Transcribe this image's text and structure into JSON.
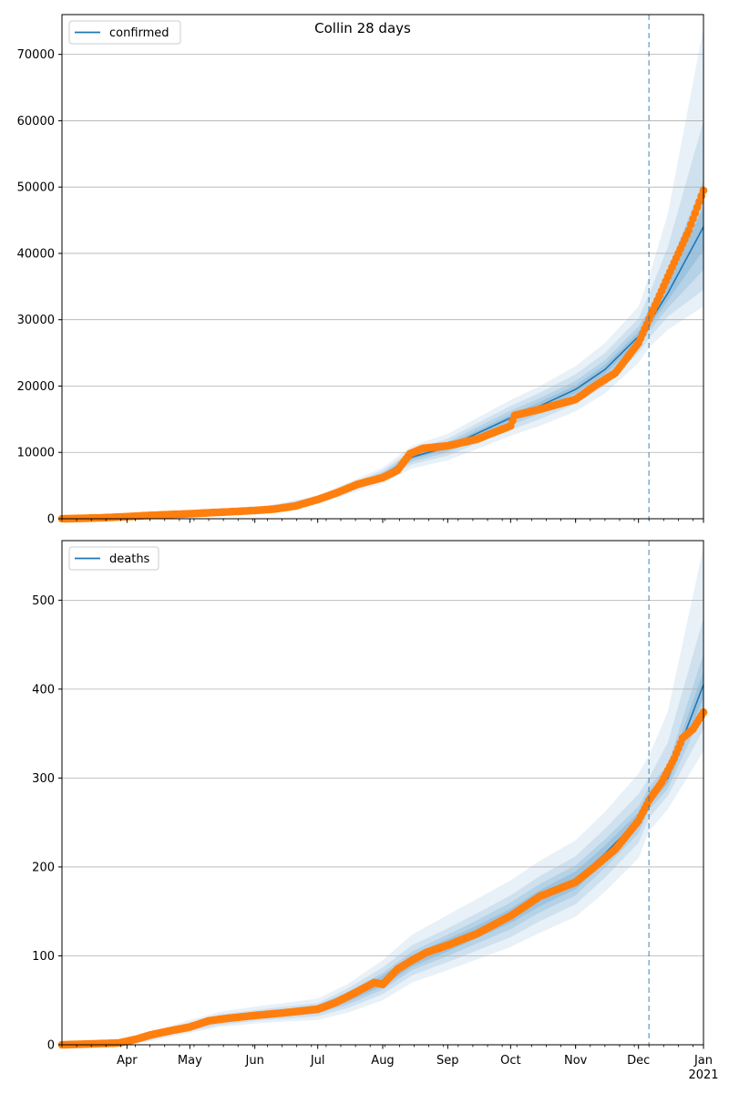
{
  "figure": {
    "title": "Collin 28 days"
  },
  "chart_data": [
    {
      "type": "line",
      "title": "Collin 28 days",
      "xlabel": "",
      "ylabel": "",
      "x_range": [
        "2020-03-01",
        "2021-01-01"
      ],
      "ylim": [
        0,
        76000
      ],
      "yticks": [
        0,
        10000,
        20000,
        30000,
        40000,
        50000,
        60000,
        70000
      ],
      "xtick_labels": [],
      "grid": "y",
      "legend": {
        "placement": "upper-left",
        "entries": [
          "confirmed"
        ]
      },
      "forecast_start": "2020-12-06",
      "series": [
        {
          "name": "confirmed",
          "kind": "line-model",
          "x": [
            "2020-03-01",
            "2020-04-01",
            "2020-05-01",
            "2020-06-01",
            "2020-07-01",
            "2020-08-01",
            "2020-08-15",
            "2020-09-01",
            "2020-10-01",
            "2020-10-15",
            "2020-11-01",
            "2020-11-15",
            "2020-12-01",
            "2020-12-06",
            "2020-12-15",
            "2021-01-01"
          ],
          "values": [
            0,
            300,
            700,
            1300,
            2900,
            6500,
            9300,
            10800,
            15200,
            17000,
            19500,
            22500,
            27500,
            29500,
            34000,
            44000
          ],
          "bands": [
            {
              "low": [
                0,
                200,
                500,
                1000,
                2300,
                5300,
                7600,
                8800,
                12500,
                14000,
                16200,
                18900,
                23500,
                25800,
                28500,
                32000
              ],
              "high": [
                0,
                400,
                900,
                1600,
                3500,
                7700,
                11000,
                12800,
                17900,
                20000,
                23000,
                26500,
                32000,
                36500,
                46000,
                74000
              ]
            },
            {
              "low": [
                0,
                230,
                560,
                1100,
                2500,
                5700,
                8200,
                9500,
                13400,
                15000,
                17300,
                20100,
                25000,
                27200,
                30500,
                34500
              ],
              "high": [
                0,
                370,
                840,
                1500,
                3300,
                7300,
                10400,
                12100,
                17000,
                19000,
                21800,
                25000,
                30200,
                33800,
                41000,
                60000
              ]
            },
            {
              "low": [
                0,
                260,
                620,
                1180,
                2650,
                6000,
                8600,
                10000,
                14100,
                15800,
                18200,
                21100,
                26000,
                28200,
                31800,
                37500
              ],
              "high": [
                0,
                340,
                780,
                1420,
                3150,
                7000,
                10000,
                11600,
                16300,
                18200,
                20800,
                23900,
                29000,
                31500,
                37500,
                51000
              ]
            },
            {
              "low": [
                0,
                280,
                660,
                1240,
                2780,
                6250,
                8950,
                10400,
                14700,
                16400,
                18900,
                21800,
                26800,
                28900,
                32900,
                40500
              ],
              "high": [
                0,
                320,
                740,
                1360,
                3020,
                6750,
                9650,
                11200,
                15700,
                17600,
                20100,
                23200,
                28200,
                30200,
                35300,
                47000
              ]
            }
          ]
        },
        {
          "name": "",
          "kind": "observed",
          "x": [
            "2020-03-01",
            "2020-03-10",
            "2020-03-20",
            "2020-04-01",
            "2020-04-10",
            "2020-04-20",
            "2020-05-01",
            "2020-05-10",
            "2020-05-20",
            "2020-06-01",
            "2020-06-10",
            "2020-06-20",
            "2020-07-01",
            "2020-07-10",
            "2020-07-20",
            "2020-08-01",
            "2020-08-08",
            "2020-08-14",
            "2020-08-20",
            "2020-09-01",
            "2020-09-15",
            "2020-10-01",
            "2020-10-03",
            "2020-10-15",
            "2020-11-01",
            "2020-11-10",
            "2020-11-20",
            "2020-12-01",
            "2020-12-08",
            "2020-12-15",
            "2020-12-20",
            "2020-12-25",
            "2021-01-01"
          ],
          "values": [
            0,
            60,
            150,
            320,
            480,
            620,
            750,
            900,
            1050,
            1250,
            1450,
            1900,
            2900,
            3900,
            5200,
            6200,
            7300,
            9800,
            10600,
            11000,
            12000,
            14000,
            15600,
            16500,
            18000,
            20000,
            22000,
            26500,
            31500,
            36500,
            40000,
            43500,
            49500
          ]
        }
      ]
    },
    {
      "type": "line",
      "title": "",
      "xlabel": "",
      "ylabel": "",
      "x_range": [
        "2020-03-01",
        "2021-01-01"
      ],
      "ylim": [
        0,
        567
      ],
      "yticks": [
        0,
        100,
        200,
        300,
        400,
        500
      ],
      "xtick_labels": [
        {
          "date": "2020-04-01",
          "label": "Apr"
        },
        {
          "date": "2020-05-01",
          "label": "May"
        },
        {
          "date": "2020-06-01",
          "label": "Jun"
        },
        {
          "date": "2020-07-01",
          "label": "Jul"
        },
        {
          "date": "2020-08-01",
          "label": "Aug"
        },
        {
          "date": "2020-09-01",
          "label": "Sep"
        },
        {
          "date": "2020-10-01",
          "label": "Oct"
        },
        {
          "date": "2020-11-01",
          "label": "Nov"
        },
        {
          "date": "2020-12-01",
          "label": "Dec"
        },
        {
          "date": "2021-01-01",
          "label": "Jan",
          "sublabel": "2021"
        }
      ],
      "grid": "y",
      "legend": {
        "placement": "upper-left",
        "entries": [
          "deaths"
        ]
      },
      "forecast_start": "2020-12-06",
      "series": [
        {
          "name": "deaths",
          "kind": "line-model",
          "x": [
            "2020-03-01",
            "2020-03-28",
            "2020-04-10",
            "2020-04-20",
            "2020-05-01",
            "2020-05-15",
            "2020-06-01",
            "2020-06-15",
            "2020-07-01",
            "2020-07-15",
            "2020-08-01",
            "2020-08-15",
            "2020-09-01",
            "2020-09-15",
            "2020-10-01",
            "2020-10-15",
            "2020-11-01",
            "2020-11-15",
            "2020-12-01",
            "2020-12-06",
            "2020-12-15",
            "2021-01-01"
          ],
          "values": [
            0,
            2,
            7,
            14,
            20,
            28,
            33,
            36,
            40,
            52,
            72,
            95,
            112,
            127,
            145,
            165,
            185,
            215,
            253,
            277,
            300,
            405
          ],
          "bands": [
            {
              "low": [
                0,
                0,
                3,
                8,
                13,
                20,
                24,
                26,
                28,
                36,
                50,
                70,
                84,
                96,
                110,
                126,
                144,
                172,
                210,
                240,
                265,
                330
              ],
              "high": [
                0,
                4,
                12,
                20,
                28,
                37,
                43,
                47,
                52,
                68,
                95,
                124,
                146,
                164,
                185,
                207,
                230,
                262,
                305,
                325,
                375,
                560
              ]
            },
            {
              "low": [
                0,
                1,
                4,
                10,
                15,
                22,
                27,
                29,
                32,
                41,
                57,
                78,
                93,
                106,
                121,
                139,
                158,
                188,
                227,
                255,
                280,
                355
              ],
              "high": [
                0,
                3,
                10,
                18,
                25,
                34,
                39,
                43,
                47,
                63,
                87,
                112,
                131,
                148,
                168,
                190,
                212,
                243,
                282,
                300,
                340,
                480
              ]
            },
            {
              "low": [
                0,
                1,
                5,
                11,
                17,
                25,
                29,
                32,
                35,
                45,
                62,
                84,
                100,
                114,
                130,
                149,
                168,
                199,
                238,
                264,
                288,
                375
              ],
              "high": [
                0,
                3,
                9,
                16,
                23,
                31,
                37,
                40,
                45,
                59,
                81,
                105,
                124,
                140,
                160,
                181,
                202,
                231,
                268,
                290,
                315,
                440
              ]
            },
            {
              "low": [
                0,
                2,
                6,
                12,
                18,
                26,
                31,
                34,
                37,
                48,
                66,
                88,
                105,
                120,
                137,
                156,
                175,
                206,
                245,
                270,
                294,
                390
              ],
              "high": [
                0,
                2,
                8,
                15,
                22,
                30,
                35,
                38,
                43,
                56,
                78,
                101,
                119,
                134,
                153,
                174,
                195,
                224,
                261,
                284,
                306,
                420
              ]
            }
          ]
        },
        {
          "name": "",
          "kind": "observed",
          "x": [
            "2020-03-01",
            "2020-03-15",
            "2020-03-28",
            "2020-04-05",
            "2020-04-12",
            "2020-04-20",
            "2020-05-01",
            "2020-05-10",
            "2020-05-20",
            "2020-06-01",
            "2020-06-15",
            "2020-07-01",
            "2020-07-10",
            "2020-07-20",
            "2020-07-28",
            "2020-08-01",
            "2020-08-08",
            "2020-08-15",
            "2020-08-22",
            "2020-09-01",
            "2020-09-15",
            "2020-10-01",
            "2020-10-15",
            "2020-11-01",
            "2020-11-10",
            "2020-11-20",
            "2020-12-01",
            "2020-12-06",
            "2020-12-12",
            "2020-12-18",
            "2020-12-22",
            "2020-12-27",
            "2021-01-01"
          ],
          "values": [
            0,
            1,
            2,
            6,
            11,
            15,
            20,
            27,
            30,
            33,
            36,
            40,
            48,
            60,
            70,
            68,
            85,
            95,
            104,
            112,
            125,
            145,
            167,
            183,
            200,
            220,
            252,
            275,
            295,
            322,
            345,
            355,
            374
          ]
        }
      ]
    }
  ]
}
